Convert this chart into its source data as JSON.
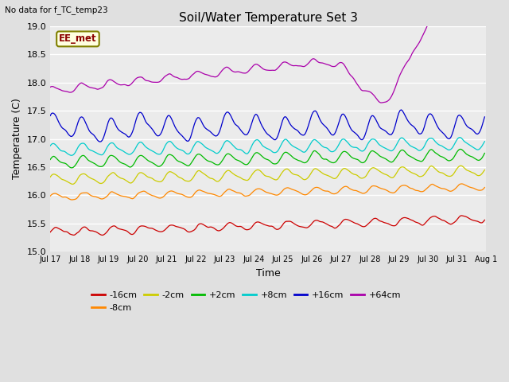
{
  "title": "Soil/Water Temperature Set 3",
  "xlabel": "Time",
  "ylabel": "Temperature (C)",
  "subtitle": "No data for f_TC_temp23",
  "annotation": "EE_met",
  "ylim": [
    15.0,
    19.0
  ],
  "yticks": [
    15.0,
    15.5,
    16.0,
    16.5,
    17.0,
    17.5,
    18.0,
    18.5,
    19.0
  ],
  "n_points": 360,
  "bg_color": "#e0e0e0",
  "plot_bg_color": "#ebebeb",
  "series": [
    {
      "label": "-16cm",
      "color": "#cc0000",
      "base": 15.35,
      "trend": 0.00065,
      "amp": 0.06,
      "phase": 0.0,
      "noise": 0.015
    },
    {
      "label": "-8cm",
      "color": "#ff8800",
      "base": 15.97,
      "trend": 0.0005,
      "amp": 0.055,
      "phase": 0.2,
      "noise": 0.012
    },
    {
      "label": "-2cm",
      "color": "#cccc00",
      "base": 16.28,
      "trend": 0.00044,
      "amp": 0.08,
      "phase": 0.4,
      "noise": 0.012
    },
    {
      "label": "+2cm",
      "color": "#00bb00",
      "base": 16.58,
      "trend": 0.00038,
      "amp": 0.09,
      "phase": 0.5,
      "noise": 0.012
    },
    {
      "label": "+8cm",
      "color": "#00cccc",
      "base": 16.8,
      "trend": 0.00032,
      "amp": 0.1,
      "phase": 0.6,
      "noise": 0.012
    },
    {
      "label": "+16cm",
      "color": "#0000cc",
      "base": 17.18,
      "trend": 0.0002,
      "amp": 0.18,
      "phase": 0.7,
      "noise": 0.015
    },
    {
      "label": "+64cm",
      "color": "#aa00aa",
      "base": 17.85,
      "trend": 0.0008,
      "amp": 0.06,
      "phase": 0.9,
      "noise": 0.015
    }
  ],
  "xtick_labels": [
    "Jul 17",
    "Jul 18",
    "Jul 19",
    "Jul 20",
    "Jul 21",
    "Jul 22",
    "Jul 23",
    "Jul 24",
    "Jul 25",
    "Jul 26",
    "Jul 27",
    "Jul 28",
    "Jul 29",
    "Jul 30",
    "Jul 31",
    "Aug 1"
  ],
  "xtick_positions": [
    0,
    24,
    48,
    72,
    96,
    120,
    144,
    168,
    192,
    216,
    240,
    264,
    288,
    312,
    336,
    360
  ]
}
